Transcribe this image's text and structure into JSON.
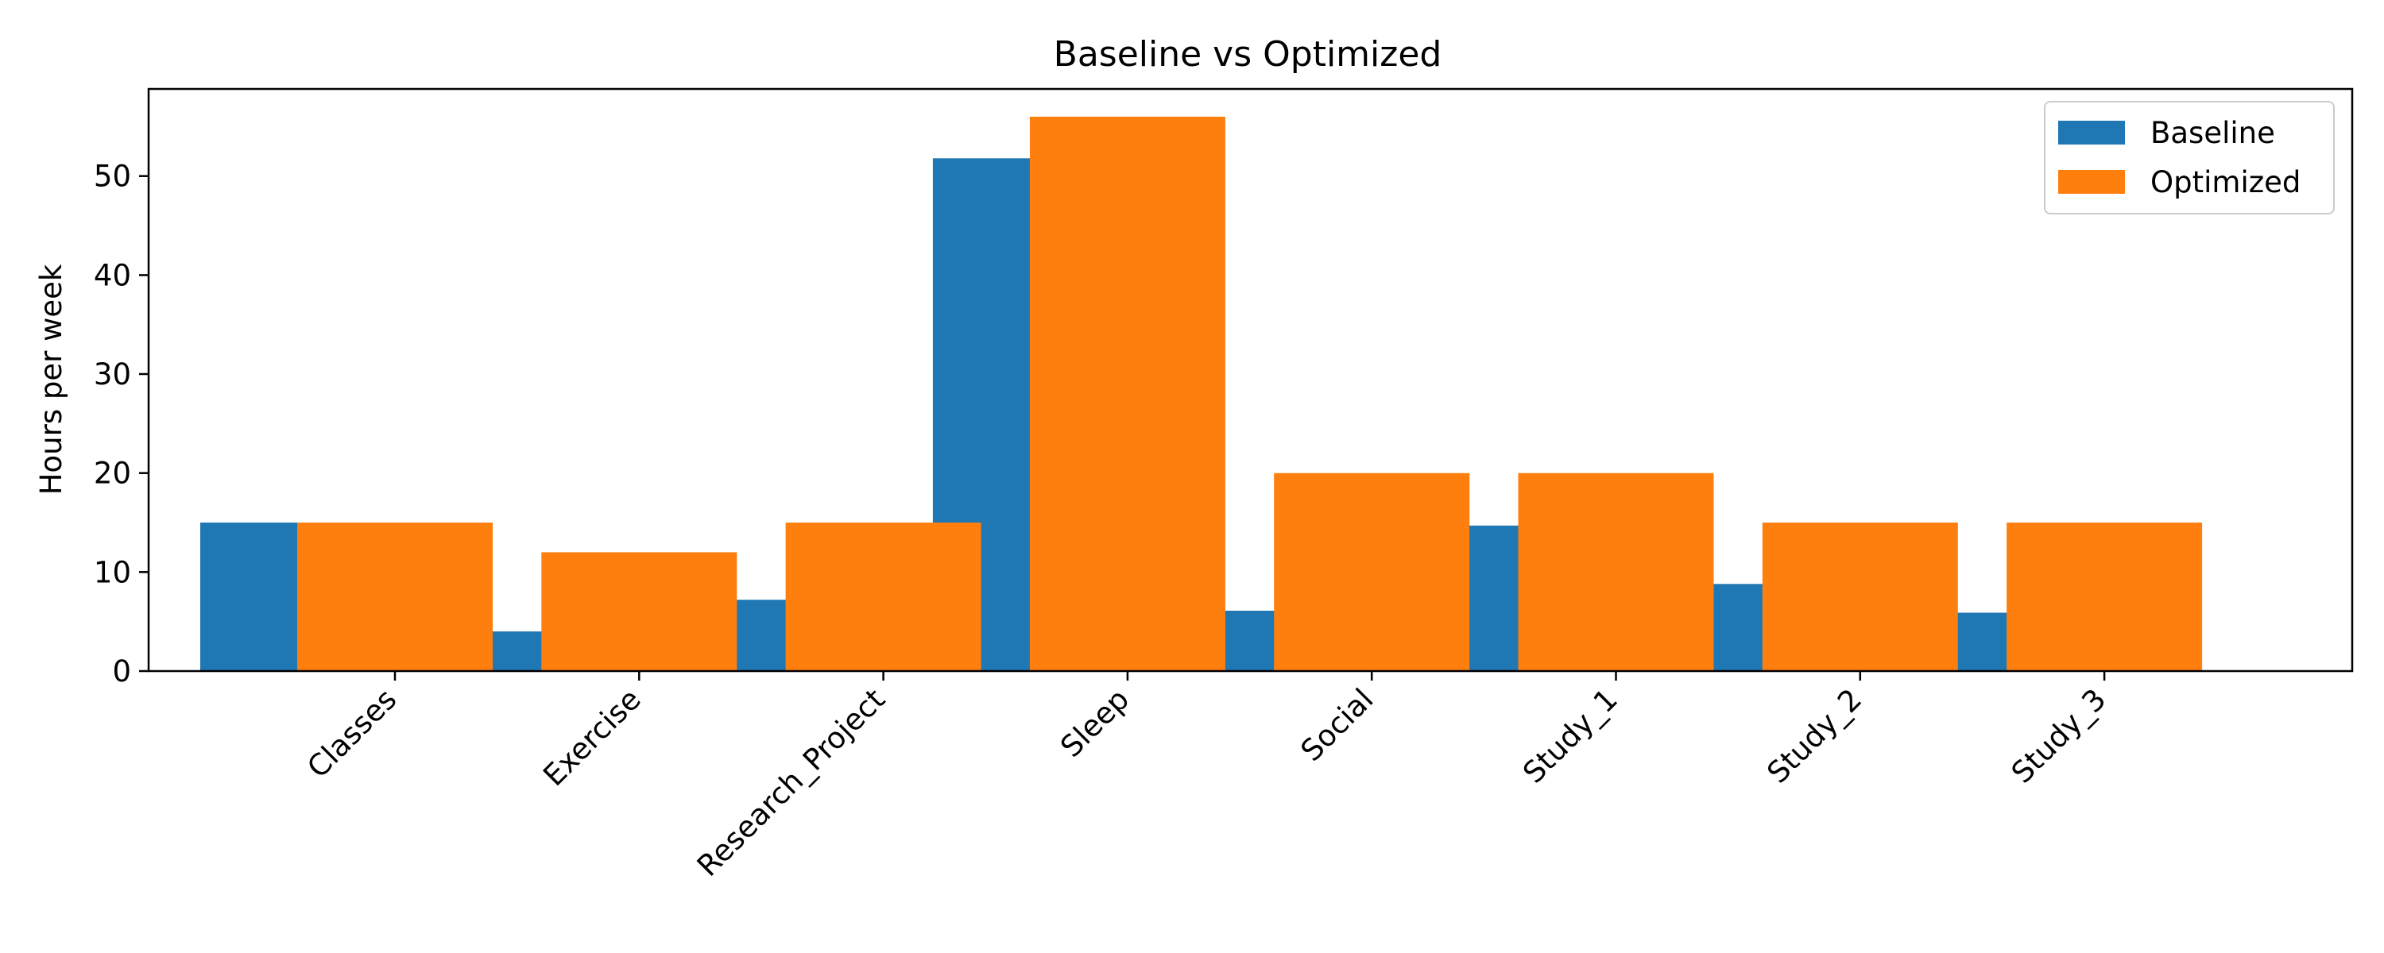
{
  "chart_data": {
    "type": "bar",
    "title": "Baseline vs Optimized",
    "xlabel": "",
    "ylabel": "Hours per week",
    "categories": [
      "Classes",
      "Exercise",
      "Research_Project",
      "Sleep",
      "Social",
      "Study_1",
      "Study_2",
      "Study_3"
    ],
    "series": [
      {
        "name": "Baseline",
        "color": "#1f77b4",
        "values": [
          15,
          4,
          7.2,
          51.8,
          6.1,
          14.7,
          8.8,
          5.9
        ]
      },
      {
        "name": "Optimized",
        "color": "#ff7f0e",
        "values": [
          15,
          12,
          15,
          56,
          20,
          20,
          15,
          15
        ]
      }
    ],
    "ylim": [
      0,
      58.8
    ],
    "yticks": [
      0,
      10,
      20,
      30,
      40,
      50
    ],
    "grid": false,
    "legend_position": "top-right"
  }
}
